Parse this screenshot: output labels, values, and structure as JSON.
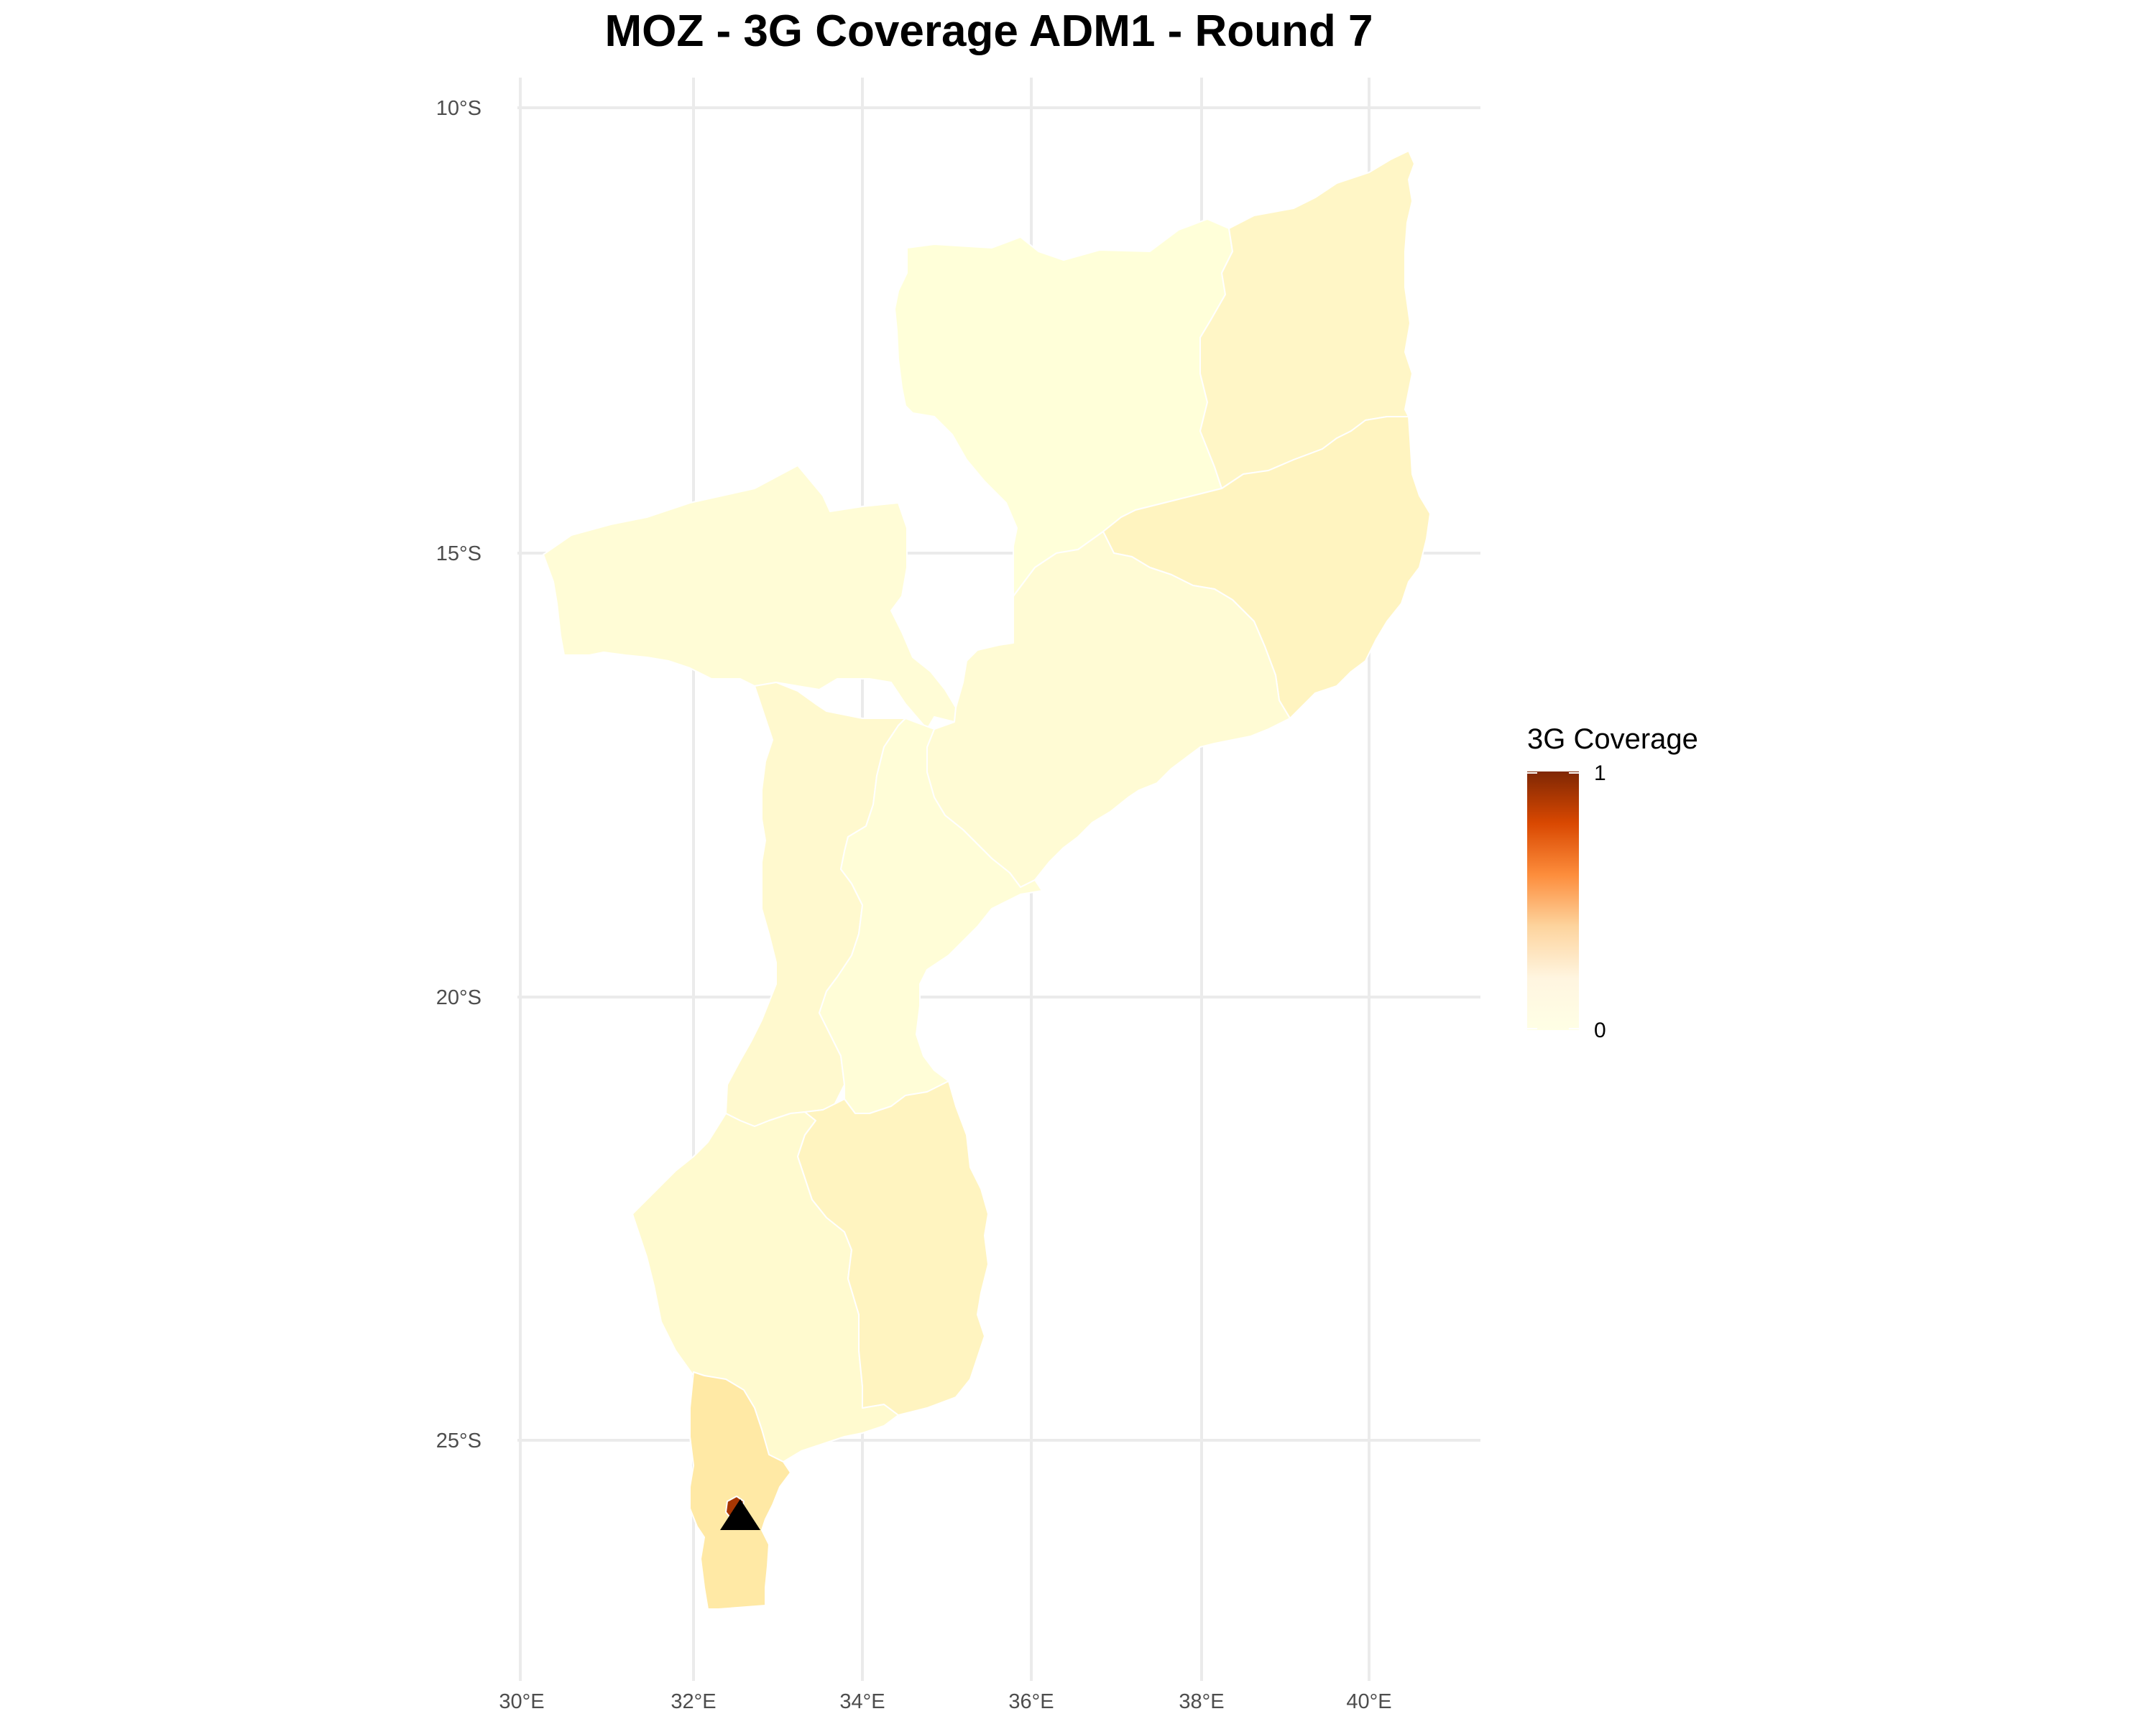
{
  "title": "MOZ - 3G Coverage ADM1 - Round 7",
  "axes": {
    "y_ticks": [
      "10°S",
      "15°S",
      "20°S",
      "25°S"
    ],
    "x_ticks": [
      "30°E",
      "32°E",
      "34°E",
      "36°E",
      "38°E",
      "40°E"
    ]
  },
  "legend": {
    "title": "3G Coverage",
    "max_label": "1",
    "min_label": "0",
    "gradient": [
      "#7f2704",
      "#d94801",
      "#fd8d3c",
      "#fdd49e",
      "#fff5e0",
      "#ffffe5"
    ]
  },
  "regions": [
    {
      "id": "niassa",
      "value": 0.01,
      "color": "#ffffd9"
    },
    {
      "id": "cabo-delgado",
      "value": 0.06,
      "color": "#fff6c6"
    },
    {
      "id": "nampula",
      "value": 0.08,
      "color": "#fff4c0"
    },
    {
      "id": "tete",
      "value": 0.03,
      "color": "#fffcd6"
    },
    {
      "id": "zambezia",
      "value": 0.03,
      "color": "#fffbd4"
    },
    {
      "id": "manica",
      "value": 0.04,
      "color": "#fff9ce"
    },
    {
      "id": "sofala",
      "value": 0.02,
      "color": "#fffdd7"
    },
    {
      "id": "gaza",
      "value": 0.04,
      "color": "#fffacf"
    },
    {
      "id": "inhambane",
      "value": 0.08,
      "color": "#fff4c0"
    },
    {
      "id": "maputo-province",
      "value": 0.2,
      "color": "#ffe9a5"
    },
    {
      "id": "maputo-city",
      "value": 1.0,
      "color": "#a63603"
    }
  ],
  "marker": {
    "symbol": "triangle",
    "color": "#000000"
  }
}
